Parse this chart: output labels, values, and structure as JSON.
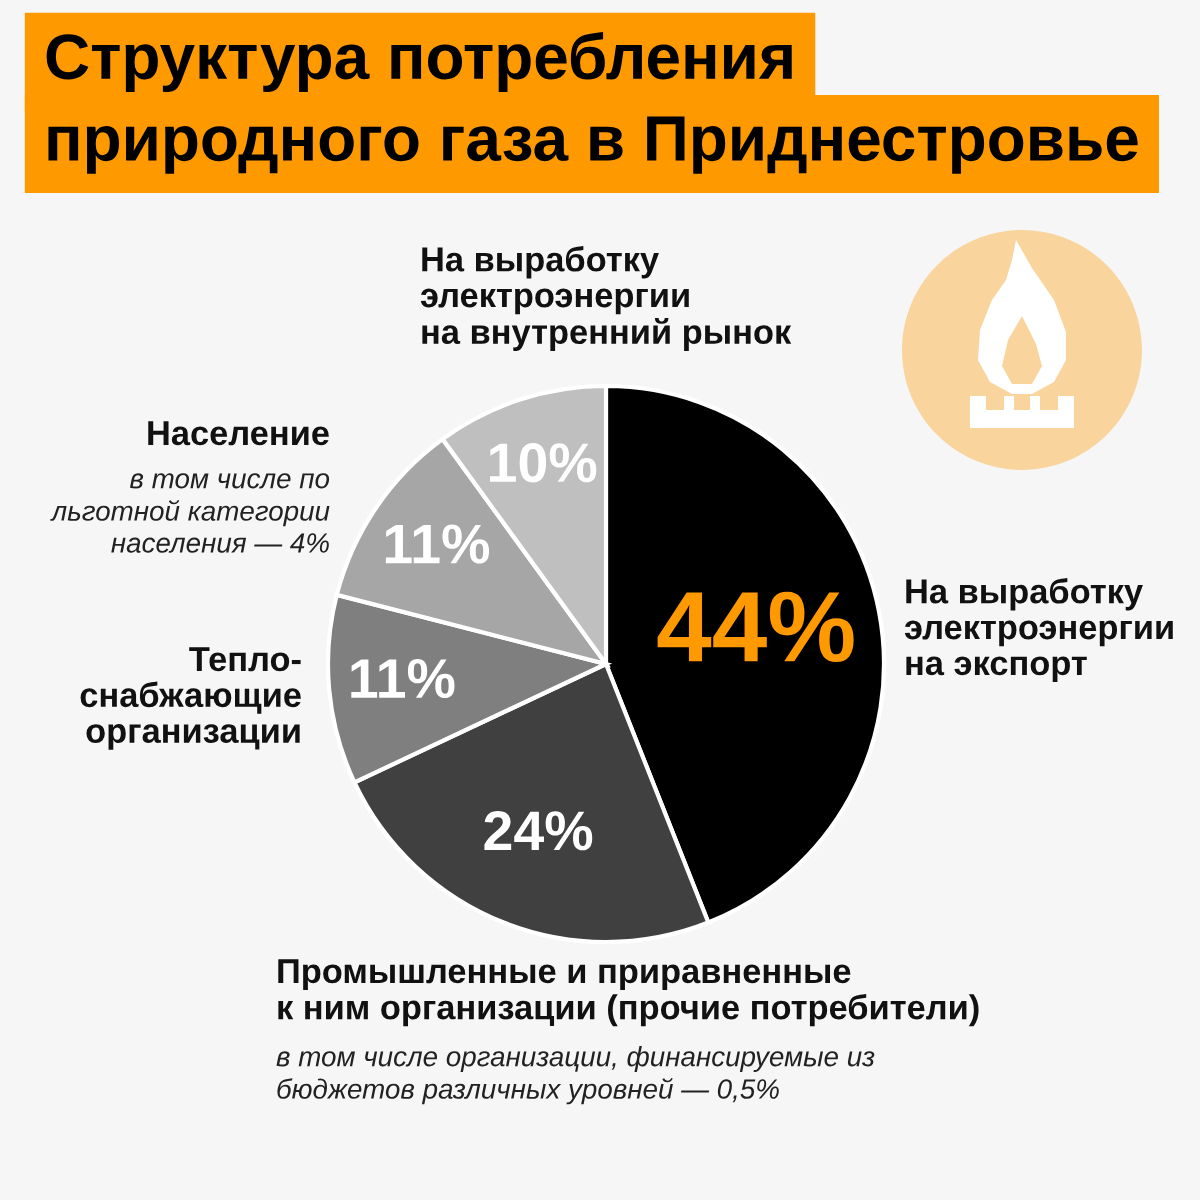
{
  "chart_data": {
    "type": "pie",
    "title": "Структура потребления\nприродного газа в Приднестровье",
    "categories": [
      "На выработку\nэлектроэнергии\nна экспорт",
      "Промышленные и приравненные\nк ним организации (прочие потребители)",
      "Тепло-\nснабжающие\nорганизации",
      "Население",
      "На выработку\nэлектроэнергии\nна внутренний рынок"
    ],
    "values": [
      44,
      24,
      11,
      11,
      10
    ],
    "colors": [
      "#000000",
      "#404040",
      "#7f7f7f",
      "#a6a6a6",
      "#bfbfbf"
    ],
    "value_labels": [
      "44%",
      "24%",
      "11%",
      "11%",
      "10%"
    ],
    "annotations": [
      "в том числе по\nльготной категории\nнаселения — 4%",
      "в том числе организации, финансируемые из\nбюджетов различных уровней — 0,5%"
    ]
  }
}
